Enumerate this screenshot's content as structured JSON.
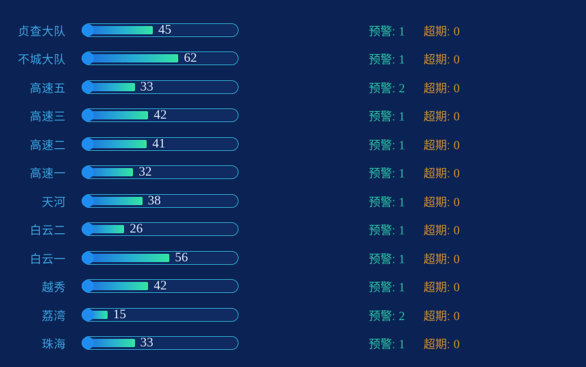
{
  "page": {
    "background_color": "#0b2354"
  },
  "colors": {
    "label_blue": "#3aa2df",
    "bar_outline": "#2fa9cf",
    "bar_cap_blue": "#1f8df0",
    "bar_gradient_start": "#1b6be0",
    "bar_gradient_end": "#33e5a2",
    "value_text": "#dde3f5",
    "warning_teal": "#2bc4a7",
    "overdue_orange": "#cd8d31"
  },
  "stats_labels": {
    "warning": "预警:",
    "overdue": "超期:"
  },
  "chart_data": {
    "type": "bar",
    "orientation": "horizontal",
    "max": 100,
    "legend_position": "none",
    "grid": false,
    "rows": [
      {
        "label": "贞查大队",
        "value": 45,
        "warning": 1,
        "overdue": 0
      },
      {
        "label": "不城大队",
        "value": 62,
        "warning": 1,
        "overdue": 0
      },
      {
        "label": "高速五",
        "value": 33,
        "warning": 2,
        "overdue": 0
      },
      {
        "label": "高速三",
        "value": 42,
        "warning": 1,
        "overdue": 0
      },
      {
        "label": "高速二",
        "value": 41,
        "warning": 1,
        "overdue": 0
      },
      {
        "label": "高速一",
        "value": 32,
        "warning": 1,
        "overdue": 0
      },
      {
        "label": "天河",
        "value": 38,
        "warning": 1,
        "overdue": 0
      },
      {
        "label": "白云二",
        "value": 26,
        "warning": 1,
        "overdue": 0
      },
      {
        "label": "白云一",
        "value": 56,
        "warning": 1,
        "overdue": 0
      },
      {
        "label": "越秀",
        "value": 42,
        "warning": 1,
        "overdue": 0
      },
      {
        "label": "荔湾",
        "value": 15,
        "warning": 2,
        "overdue": 0
      },
      {
        "label": "珠海",
        "value": 33,
        "warning": 1,
        "overdue": 0
      }
    ]
  }
}
